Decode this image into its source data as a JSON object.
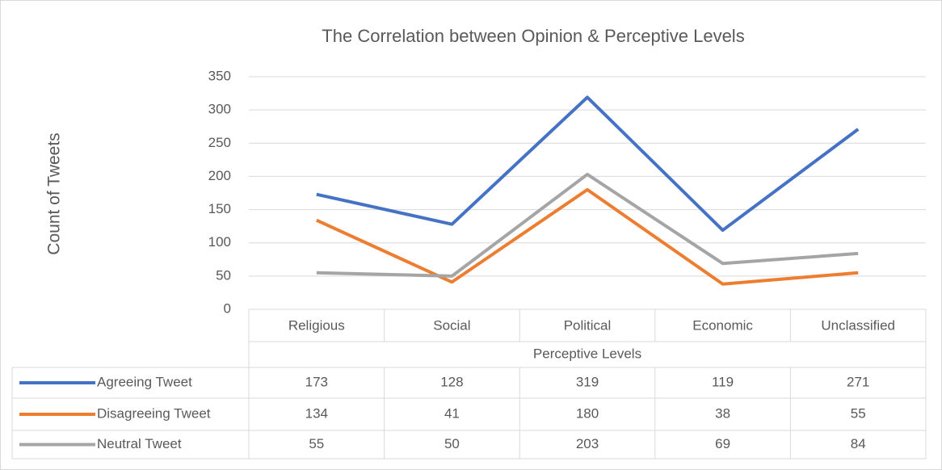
{
  "chart_data": {
    "type": "line",
    "title": "The Correlation between Opinion & Perceptive Levels",
    "x_label": "Perceptive Levels",
    "y_label": "Count of Tweets",
    "categories": [
      "Religious",
      "Social",
      "Political",
      "Economic",
      "Unclassified"
    ],
    "series": [
      {
        "name": "Agreeing Tweet",
        "color": "#4472c4",
        "values": [
          173,
          128,
          319,
          119,
          271
        ]
      },
      {
        "name": "Disagreeing Tweet",
        "color": "#ed7d31",
        "values": [
          134,
          41,
          180,
          38,
          55
        ]
      },
      {
        "name": "Neutral Tweet",
        "color": "#a5a5a5",
        "values": [
          55,
          50,
          203,
          69,
          84
        ]
      }
    ],
    "ylim": [
      0,
      350
    ],
    "yticks": [
      0,
      50,
      100,
      150,
      200,
      250,
      300,
      350
    ],
    "grid": true
  }
}
